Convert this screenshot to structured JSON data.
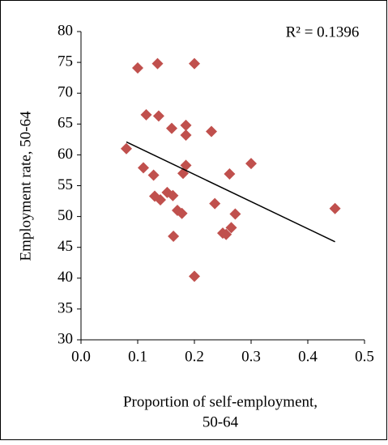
{
  "chart_data": {
    "type": "scatter",
    "xlabel": [
      "Proportion of self-employment,",
      "50-64"
    ],
    "ylabel": "Employment rate, 50-64",
    "annotation": "R² = 0.1396",
    "color": "#c0504d",
    "series": [
      {
        "x": [
          0.08,
          0.1,
          0.135,
          0.2,
          0.115,
          0.137,
          0.16,
          0.185,
          0.185,
          0.23,
          0.11,
          0.128,
          0.185,
          0.18,
          0.262,
          0.3,
          0.13,
          0.14,
          0.152,
          0.162,
          0.17,
          0.178,
          0.236,
          0.163,
          0.2,
          0.25,
          0.256,
          0.265,
          0.272,
          0.448
        ],
        "values": [
          61.0,
          74.1,
          74.8,
          74.8,
          66.5,
          66.3,
          64.3,
          64.8,
          63.2,
          63.8,
          57.9,
          56.7,
          58.3,
          57.0,
          56.9,
          58.6,
          53.3,
          52.7,
          53.9,
          53.4,
          51.0,
          50.5,
          52.1,
          46.8,
          40.3,
          47.3,
          47.1,
          48.2,
          50.4,
          51.3
        ]
      }
    ],
    "trendline": {
      "x": [
        0.08,
        0.448
      ],
      "values": [
        62.1,
        45.9
      ]
    },
    "xlim": [
      0,
      0.5
    ],
    "xticks": [
      {
        "value": 0,
        "label": "0.0"
      },
      0.1,
      0.2,
      0.3,
      0.4,
      0.5
    ],
    "ylim": [
      30,
      80
    ],
    "yticks": [
      30,
      35,
      40,
      45,
      50,
      55,
      60,
      65,
      70,
      75,
      80
    ]
  }
}
